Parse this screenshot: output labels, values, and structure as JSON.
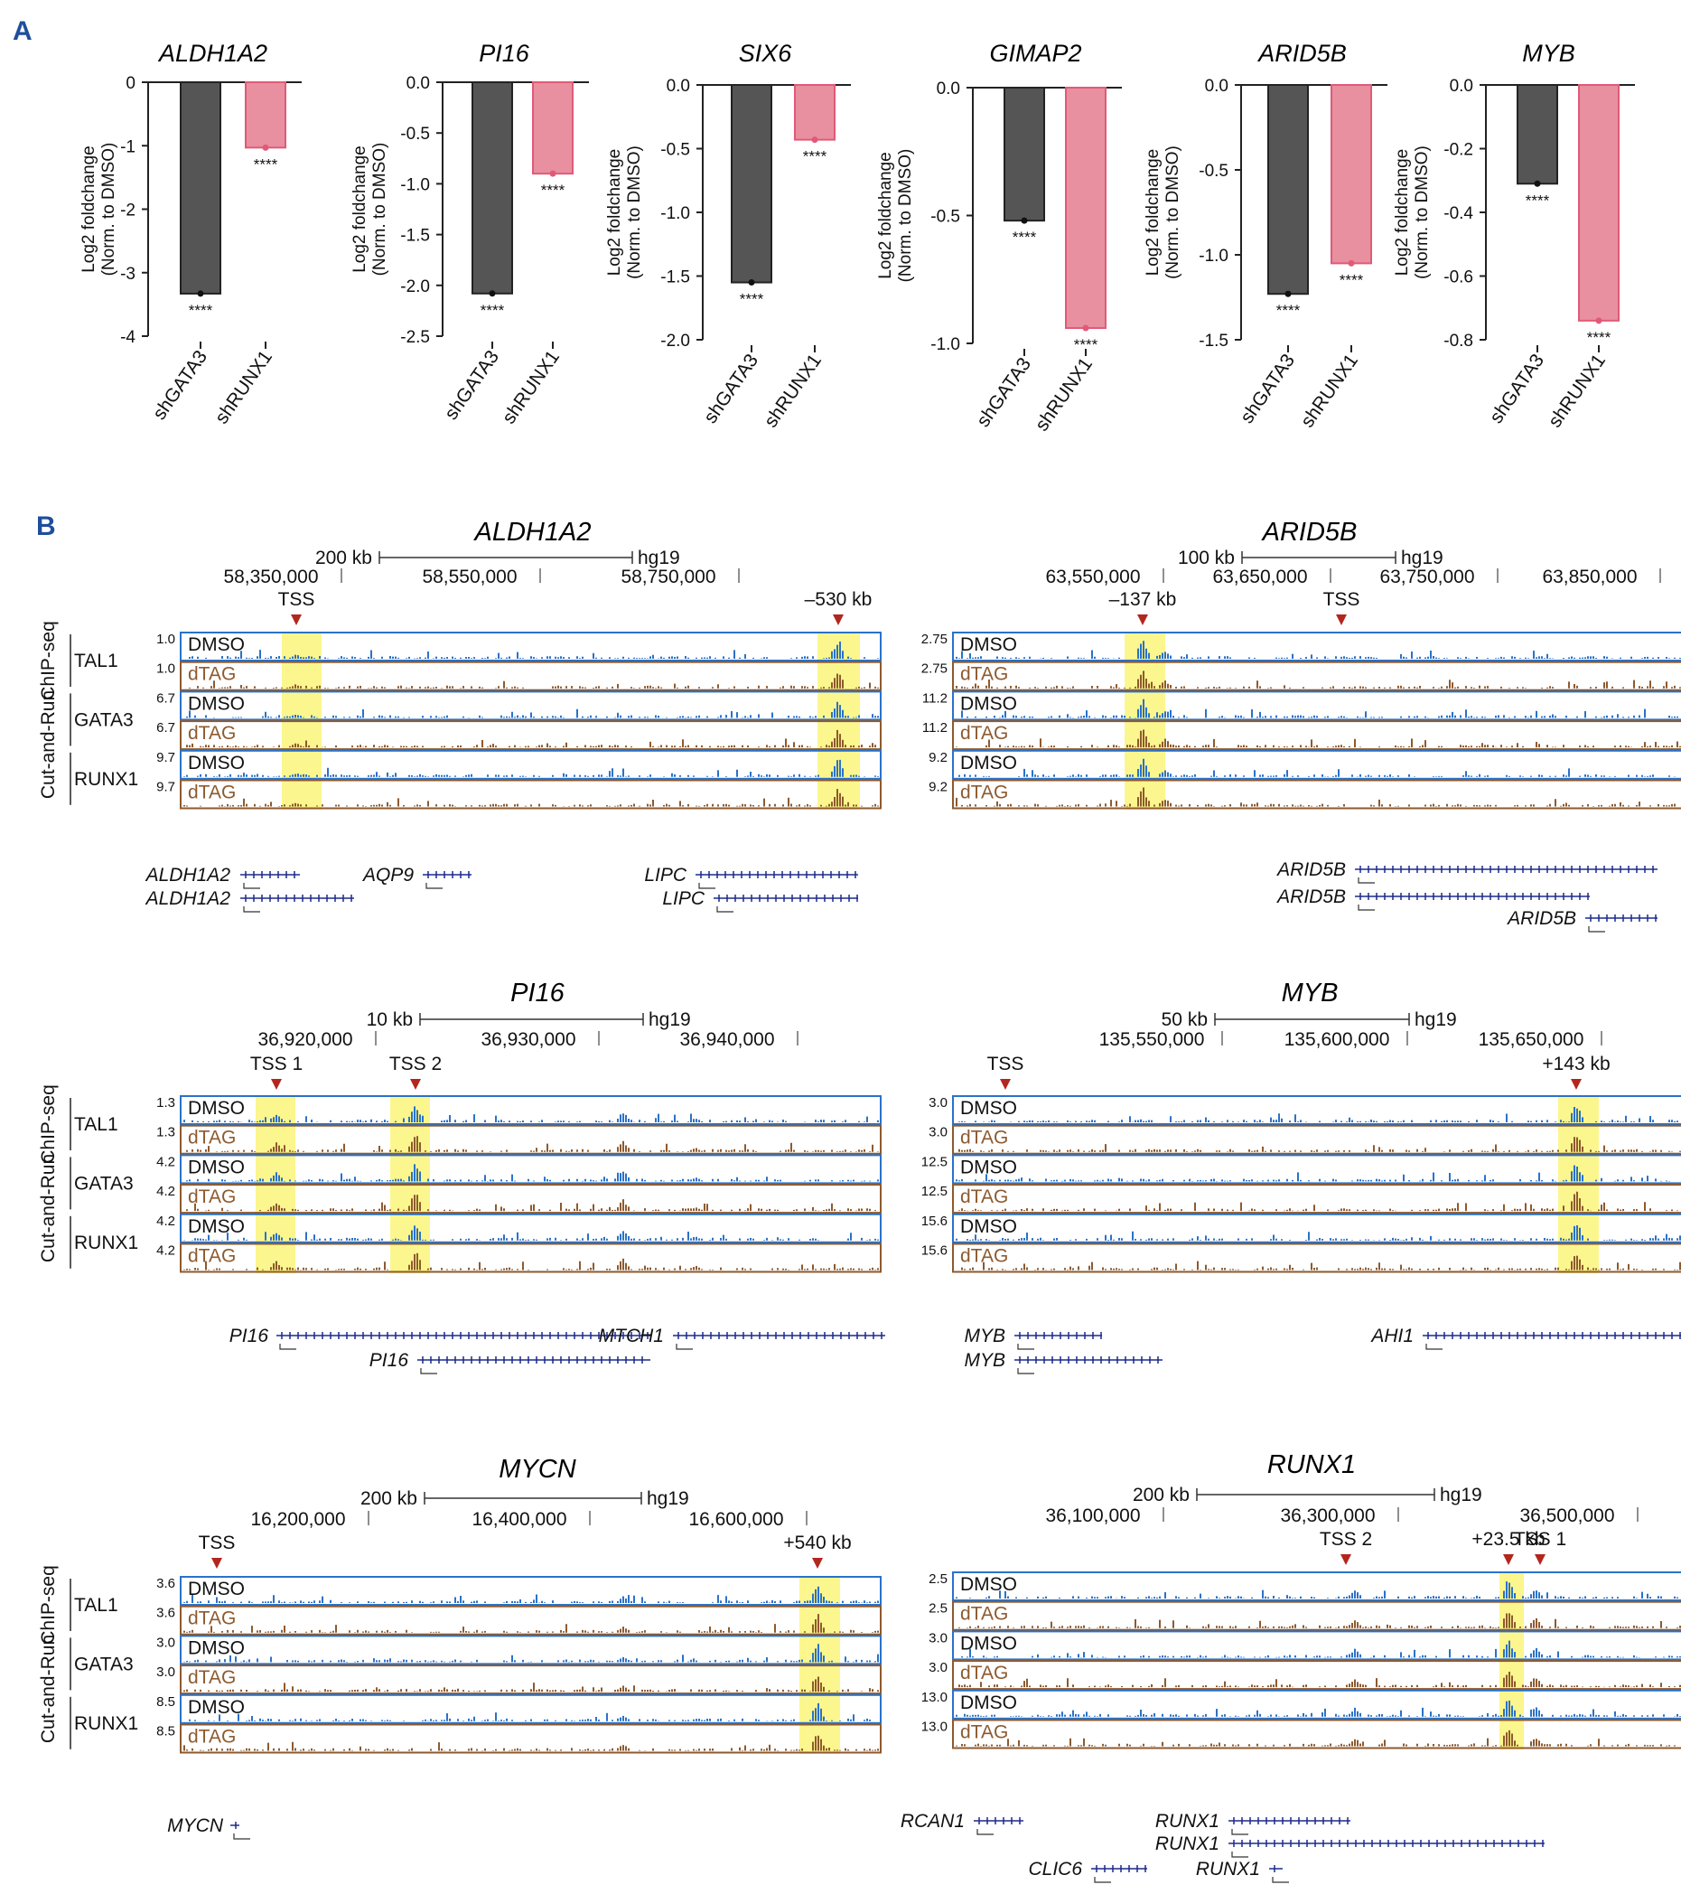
{
  "panel_labels": {
    "a": "A",
    "b": "B"
  },
  "colors": {
    "shGATA3": "#555555",
    "shRUNX1": "#e8909f",
    "shRUNX1_edge": "#e05a78",
    "dmso": "#2a72c9",
    "dtag": "#8e5a2e",
    "highlight": "#fbf47a",
    "gene": "#1c2a8c",
    "marker": "#b3261e",
    "label_a": "#1f4e9c"
  },
  "chart_data": [
    {
      "type": "bar",
      "title": "ALDH1A2",
      "ylabel": "Log2 foldchange\n(Norm. to DMSO)",
      "categories": [
        "shGATA3",
        "shRUNX1"
      ],
      "values": [
        -3.33,
        -1.03
      ],
      "ylim": [
        -4,
        0
      ],
      "yticks": [
        "0",
        "-1",
        "-2",
        "-3",
        "-4"
      ],
      "sig": [
        "****",
        "****"
      ]
    },
    {
      "type": "bar",
      "title": "PI16",
      "ylabel": "Log2 foldchange\n(Norm. to DMSO)",
      "categories": [
        "shGATA3",
        "shRUNX1"
      ],
      "values": [
        -2.08,
        -0.9
      ],
      "ylim": [
        -2.5,
        0
      ],
      "yticks": [
        "0.0",
        "-0.5",
        "-1.0",
        "-1.5",
        "-2.0",
        "-2.5"
      ],
      "sig": [
        "****",
        "****"
      ]
    },
    {
      "type": "bar",
      "title": "SIX6",
      "ylabel": "Log2 foldchange\n(Norm. to DMSO)",
      "categories": [
        "shGATA3",
        "shRUNX1"
      ],
      "values": [
        -1.55,
        -0.43
      ],
      "ylim": [
        -2,
        0
      ],
      "yticks": [
        "0.0",
        "-0.5",
        "-1.0",
        "-1.5",
        "-2.0"
      ],
      "sig": [
        "****",
        "****"
      ]
    },
    {
      "type": "bar",
      "title": "GIMAP2",
      "ylabel": "Log2 foldchange\n(Norm. to DMSO)",
      "categories": [
        "shGATA3",
        "shRUNX1"
      ],
      "values": [
        -0.52,
        -0.94
      ],
      "ylim": [
        -1,
        0
      ],
      "yticks": [
        "0.0",
        "-0.5",
        "-1.0"
      ],
      "sig": [
        "****",
        "****"
      ]
    },
    {
      "type": "bar",
      "title": "ARID5B",
      "ylabel": "Log2 foldchange\n(Norm. to DMSO)",
      "categories": [
        "shGATA3",
        "shRUNX1"
      ],
      "values": [
        -1.23,
        -1.05
      ],
      "ylim": [
        -1.5,
        0
      ],
      "yticks": [
        "0.0",
        "-0.5",
        "-1.0",
        "-1.5"
      ],
      "sig": [
        "****",
        "****"
      ]
    },
    {
      "type": "bar",
      "title": "MYB",
      "ylabel": "Log2 foldchange\n(Norm. to DMSO)",
      "categories": [
        "shGATA3",
        "shRUNX1"
      ],
      "values": [
        -0.31,
        -0.74
      ],
      "ylim": [
        -0.8,
        0
      ],
      "yticks": [
        "0.0",
        "-0.2",
        "-0.4",
        "-0.6",
        "-0.8"
      ],
      "sig": [
        "****",
        "****"
      ]
    }
  ],
  "track_side_labels": {
    "chip": "ChIP-seq",
    "cnr": "Cut-and-Run",
    "factors": [
      "TAL1",
      "GATA3",
      "RUNX1"
    ],
    "conditions": [
      "DMSO",
      "dTAG"
    ]
  },
  "tracks": [
    {
      "title": "ALDH1A2",
      "scale": {
        "label": "200 kb",
        "assembly": "hg19"
      },
      "coords": [
        "58,350,000",
        "58,550,000",
        "58,750,000"
      ],
      "markers": [
        "TSS",
        "–530 kb"
      ],
      "values": [
        "1.0",
        "1.0",
        "6.7",
        "6.7",
        "9.7",
        "9.7"
      ],
      "genes": [
        "ALDH1A2",
        "ALDH1A2",
        "AQP9",
        "LIPC",
        "LIPC"
      ]
    },
    {
      "title": "ARID5B",
      "scale": {
        "label": "100 kb",
        "assembly": "hg19"
      },
      "coords": [
        "63,550,000",
        "63,650,000",
        "63,750,000",
        "63,850,000"
      ],
      "markers": [
        "–137 kb",
        "TSS"
      ],
      "values": [
        "2.75",
        "2.75",
        "11.2",
        "11.2",
        "9.2",
        "9.2"
      ],
      "genes": [
        "ARID5B",
        "ARID5B",
        "ARID5B"
      ]
    },
    {
      "title": "PI16",
      "scale": {
        "label": "10 kb",
        "assembly": "hg19"
      },
      "coords": [
        "36,920,000",
        "36,930,000",
        "36,940,000"
      ],
      "markers": [
        "TSS 1",
        "TSS 2"
      ],
      "values": [
        "1.3",
        "1.3",
        "4.2",
        "4.2",
        "4.2",
        "4.2"
      ],
      "genes": [
        "PI16",
        "PI16",
        "MTCH1"
      ]
    },
    {
      "title": "MYB",
      "scale": {
        "label": "50 kb",
        "assembly": "hg19"
      },
      "coords": [
        "135,550,000",
        "135,600,000",
        "135,650,000"
      ],
      "markers": [
        "TSS",
        "+143 kb"
      ],
      "values": [
        "3.0",
        "3.0",
        "12.5",
        "12.5",
        "15.6",
        "15.6"
      ],
      "genes": [
        "MYB",
        "MYB",
        "AHI1"
      ]
    },
    {
      "title": "MYCN",
      "scale": {
        "label": "200 kb",
        "assembly": "hg19"
      },
      "coords": [
        "16,200,000",
        "16,400,000",
        "16,600,000"
      ],
      "markers": [
        "TSS",
        "+540 kb"
      ],
      "values": [
        "3.6",
        "3.6",
        "3.0",
        "3.0",
        "8.5",
        "8.5"
      ],
      "genes": [
        "MYCN"
      ]
    },
    {
      "title": "RUNX1",
      "scale": {
        "label": "200 kb",
        "assembly": "hg19"
      },
      "coords": [
        "36,100,000",
        "36,300,000",
        "36,500,000"
      ],
      "markers": [
        "TSS 2",
        "+23.5 kb",
        "TSS 1"
      ],
      "values": [
        "2.5",
        "2.5",
        "3.0",
        "3.0",
        "13.0",
        "13.0"
      ],
      "genes": [
        "RCAN1",
        "RUNX1",
        "RUNX1",
        "CLIC6",
        "RUNX1"
      ]
    }
  ]
}
